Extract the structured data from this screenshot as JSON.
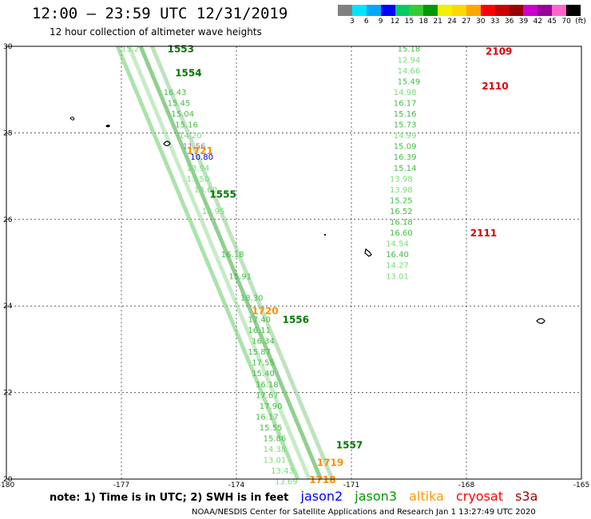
{
  "title": "12:00 – 23:59 UTC 12/31/2019",
  "subtitle": "12 hour collection of altimeter wave heights",
  "legend": {
    "colors": [
      "#808080",
      "#00e5ff",
      "#00a8ff",
      "#0000ff",
      "#00cc66",
      "#33cc33",
      "#009900",
      "#f0f000",
      "#ffd700",
      "#ffa500",
      "#ff0000",
      "#cc0000",
      "#990000",
      "#cc00cc",
      "#990099",
      "#ff66cc",
      "#000000"
    ],
    "labels": [
      "3",
      "6",
      "9",
      "12",
      "15",
      "18",
      "21",
      "24",
      "27",
      "30",
      "33",
      "36",
      "39",
      "42",
      "45",
      "70",
      "(ft)"
    ]
  },
  "axes": {
    "x_ticks": [
      "-180",
      "-177",
      "-174",
      "-171",
      "-168",
      "-165"
    ],
    "y_ticks": [
      "30",
      "28",
      "26",
      "24",
      "22",
      "20"
    ]
  },
  "chart_data": {
    "type": "scatter",
    "xlabel": "",
    "ylabel": "",
    "xlim": [
      -180,
      -165
    ],
    "ylim": [
      20,
      30
    ],
    "pass_labels": [
      {
        "text": "1553",
        "lon": -175.8,
        "lat": 29.95,
        "color": "#007700"
      },
      {
        "text": "1554",
        "lon": -175.6,
        "lat": 29.4,
        "color": "#007700"
      },
      {
        "text": "1721",
        "lon": -175.3,
        "lat": 27.6,
        "color": "#ff8c00"
      },
      {
        "text": "1555",
        "lon": -174.7,
        "lat": 26.6,
        "color": "#007700"
      },
      {
        "text": "1720",
        "lon": -173.6,
        "lat": 23.9,
        "color": "#ff8c00"
      },
      {
        "text": "1556",
        "lon": -172.8,
        "lat": 23.7,
        "color": "#007700"
      },
      {
        "text": "1557",
        "lon": -171.4,
        "lat": 20.8,
        "color": "#007700"
      },
      {
        "text": "1719",
        "lon": -171.9,
        "lat": 20.4,
        "color": "#ff8c00"
      },
      {
        "text": "1718",
        "lon": -172.1,
        "lat": 20.0,
        "color": "#ff8c00"
      },
      {
        "text": "2109",
        "lon": -167.5,
        "lat": 29.9,
        "color": "#dd0000"
      },
      {
        "text": "2110",
        "lon": -167.6,
        "lat": 29.1,
        "color": "#dd0000"
      },
      {
        "text": "2111",
        "lon": -167.9,
        "lat": 25.7,
        "color": "#dd0000"
      }
    ],
    "track_values": [
      {
        "text": "15.18",
        "lon": -169.8,
        "lat": 29.95,
        "color": "#44bb44"
      },
      {
        "text": "12.94",
        "lon": -169.8,
        "lat": 29.7,
        "color": "#77dd77"
      },
      {
        "text": "14.66",
        "lon": -169.8,
        "lat": 29.45,
        "color": "#77dd77"
      },
      {
        "text": "15.49",
        "lon": -169.8,
        "lat": 29.2,
        "color": "#44bb44"
      },
      {
        "text": "14.98",
        "lon": -169.9,
        "lat": 28.95,
        "color": "#77dd77"
      },
      {
        "text": "16.17",
        "lon": -169.9,
        "lat": 28.7,
        "color": "#44bb44"
      },
      {
        "text": "15.16",
        "lon": -169.9,
        "lat": 28.45,
        "color": "#44bb44"
      },
      {
        "text": "15.73",
        "lon": -169.9,
        "lat": 28.2,
        "color": "#44bb44"
      },
      {
        "text": "14.99",
        "lon": -169.9,
        "lat": 27.95,
        "color": "#77dd77"
      },
      {
        "text": "15.09",
        "lon": -169.9,
        "lat": 27.7,
        "color": "#44bb44"
      },
      {
        "text": "16.39",
        "lon": -169.9,
        "lat": 27.45,
        "color": "#44bb44"
      },
      {
        "text": "15.14",
        "lon": -169.9,
        "lat": 27.2,
        "color": "#44bb44"
      },
      {
        "text": "13.98",
        "lon": -170.0,
        "lat": 26.95,
        "color": "#77dd77"
      },
      {
        "text": "13.98",
        "lon": -170.0,
        "lat": 26.7,
        "color": "#77dd77"
      },
      {
        "text": "15.25",
        "lon": -170.0,
        "lat": 26.45,
        "color": "#44bb44"
      },
      {
        "text": "16.52",
        "lon": -170.0,
        "lat": 26.2,
        "color": "#44bb44"
      },
      {
        "text": "16.18",
        "lon": -170.0,
        "lat": 25.95,
        "color": "#44bb44"
      },
      {
        "text": "16.60",
        "lon": -170.0,
        "lat": 25.7,
        "color": "#44bb44"
      },
      {
        "text": "14.54",
        "lon": -170.1,
        "lat": 25.45,
        "color": "#77dd77"
      },
      {
        "text": "16.40",
        "lon": -170.1,
        "lat": 25.2,
        "color": "#44bb44"
      },
      {
        "text": "14.27",
        "lon": -170.1,
        "lat": 24.95,
        "color": "#77dd77"
      },
      {
        "text": "13.01",
        "lon": -170.1,
        "lat": 24.7,
        "color": "#77dd77"
      },
      {
        "text": "15.21",
        "lon": -177.0,
        "lat": 29.95,
        "color": "#77dd77"
      },
      {
        "text": "16.43",
        "lon": -175.9,
        "lat": 28.95,
        "color": "#44bb44"
      },
      {
        "text": "15.45",
        "lon": -175.8,
        "lat": 28.7,
        "color": "#44bb44"
      },
      {
        "text": "15.04",
        "lon": -175.7,
        "lat": 28.45,
        "color": "#44bb44"
      },
      {
        "text": "15.16",
        "lon": -175.6,
        "lat": 28.2,
        "color": "#44bb44"
      },
      {
        "text": "14.20",
        "lon": -175.5,
        "lat": 27.95,
        "color": "#77dd77"
      },
      {
        "text": "11.56",
        "lon": -175.4,
        "lat": 27.7,
        "color": "#888888"
      },
      {
        "text": "10.80",
        "lon": -175.2,
        "lat": 27.45,
        "color": "#0000cc"
      },
      {
        "text": "13.94",
        "lon": -175.3,
        "lat": 27.2,
        "color": "#77dd77"
      },
      {
        "text": "13.50",
        "lon": -175.3,
        "lat": 26.95,
        "color": "#77dd77"
      },
      {
        "text": "13.60",
        "lon": -175.1,
        "lat": 26.7,
        "color": "#77dd77"
      },
      {
        "text": "13.95",
        "lon": -174.9,
        "lat": 26.2,
        "color": "#77dd77"
      },
      {
        "text": "16.18",
        "lon": -174.4,
        "lat": 25.2,
        "color": "#44bb44"
      },
      {
        "text": "15.91",
        "lon": -174.2,
        "lat": 24.7,
        "color": "#44bb44"
      },
      {
        "text": "18.30",
        "lon": -173.9,
        "lat": 24.2,
        "color": "#44bb44"
      },
      {
        "text": "17.40",
        "lon": -173.7,
        "lat": 23.7,
        "color": "#44bb44"
      },
      {
        "text": "16.11",
        "lon": -173.7,
        "lat": 23.45,
        "color": "#44bb44"
      },
      {
        "text": "16.34",
        "lon": -173.6,
        "lat": 23.2,
        "color": "#44bb44"
      },
      {
        "text": "15.87",
        "lon": -173.7,
        "lat": 22.95,
        "color": "#44bb44"
      },
      {
        "text": "17.55",
        "lon": -173.6,
        "lat": 22.7,
        "color": "#44bb44"
      },
      {
        "text": "15.40",
        "lon": -173.6,
        "lat": 22.45,
        "color": "#44bb44"
      },
      {
        "text": "16.18",
        "lon": -173.5,
        "lat": 22.2,
        "color": "#44bb44"
      },
      {
        "text": "17.67",
        "lon": -173.5,
        "lat": 21.95,
        "color": "#44bb44"
      },
      {
        "text": "17.90",
        "lon": -173.4,
        "lat": 21.7,
        "color": "#44bb44"
      },
      {
        "text": "16.17",
        "lon": -173.5,
        "lat": 21.45,
        "color": "#44bb44"
      },
      {
        "text": "15.55",
        "lon": -173.4,
        "lat": 21.2,
        "color": "#44bb44"
      },
      {
        "text": "15.86",
        "lon": -173.3,
        "lat": 20.95,
        "color": "#44bb44"
      },
      {
        "text": "14.38",
        "lon": -173.3,
        "lat": 20.7,
        "color": "#77dd77"
      },
      {
        "text": "13.01",
        "lon": -173.3,
        "lat": 20.45,
        "color": "#77dd77"
      },
      {
        "text": "13.43",
        "lon": -173.1,
        "lat": 20.2,
        "color": "#77dd77"
      },
      {
        "text": "13.69",
        "lon": -173.0,
        "lat": 19.95,
        "color": "#77dd77"
      }
    ]
  },
  "note": "note:  1) Time is in UTC;  2) SWH is in feet",
  "satellites": [
    {
      "name": "jason2",
      "color": "#0000ff"
    },
    {
      "name": "jason3",
      "color": "#009900"
    },
    {
      "name": "altika",
      "color": "#ff9900"
    },
    {
      "name": "cryosat",
      "color": "#ff0000"
    },
    {
      "name": "s3a",
      "color": "#990000"
    }
  ],
  "footer": "NOAA/NESDIS Center for Satellite Applications and Research    Jan  1 13:27:49 UTC 2020"
}
